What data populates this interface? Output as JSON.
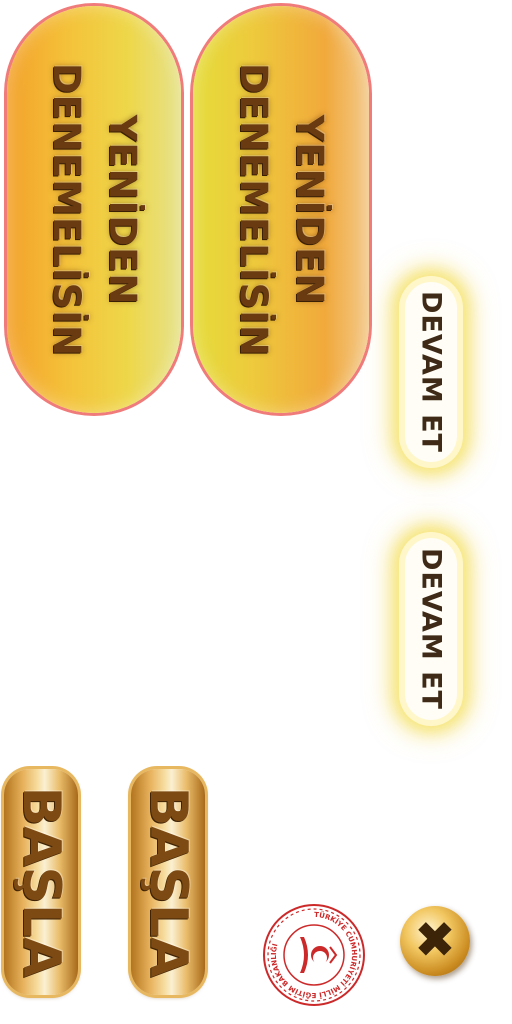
{
  "retry_buttons": [
    {
      "label": "YENİDEN DENEMELİSİN"
    },
    {
      "label": "YENİDEN DENEMELİSİN"
    }
  ],
  "continue_buttons": [
    {
      "label": "DEVAM ET"
    },
    {
      "label": "DEVAM ET"
    }
  ],
  "start_buttons": [
    {
      "label": "BAŞLA"
    },
    {
      "label": "BAŞLA"
    }
  ],
  "emblem": {
    "text": "TÜRKİYE CUMHURİYETİ MİLLÎ EĞİTİM BAKANLIĞI",
    "icon": "ministry-of-education-seal"
  },
  "close": {
    "icon": "close-icon",
    "glyph": "✖"
  },
  "colors": {
    "retry_text": "#6a3b10",
    "pill_border": "#f07b7b",
    "glow": "#f7e77a",
    "gold": "#e6b05a",
    "seal_red": "#cc2a2a"
  }
}
